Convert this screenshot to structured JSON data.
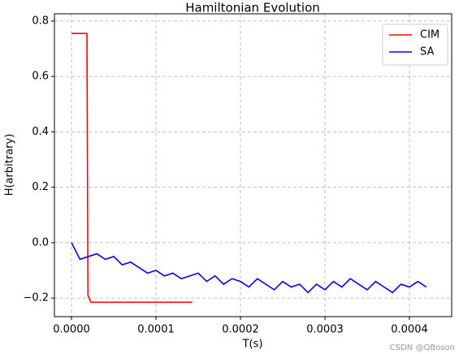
{
  "chart_data": {
    "type": "line",
    "title": "Hamiltonian Evolution",
    "xlabel": "T(s)",
    "ylabel": "H(arbitrary)",
    "watermark": "CSDN @QBoson",
    "xlim": [
      -2.02e-05,
      0.00045
    ],
    "ylim": [
      -0.267,
      0.826
    ],
    "xticks": [
      {
        "value": 0,
        "label": "0.0000"
      },
      {
        "value": 0.0001,
        "label": "0.0001"
      },
      {
        "value": 0.0002,
        "label": "0.0002"
      },
      {
        "value": 0.0003,
        "label": "0.0003"
      },
      {
        "value": 0.0004,
        "label": "0.0004"
      }
    ],
    "yticks": [
      {
        "value": -0.2,
        "label": "−0.2"
      },
      {
        "value": 0,
        "label": "0.0"
      },
      0.2,
      0.4,
      0.6,
      0.8
    ],
    "grid": true,
    "legend": "upper right",
    "series": [
      {
        "name": "CIM",
        "color": "#ff0000",
        "x": [
          0,
          1.83e-05,
          1.95e-05,
          2.3e-05,
          0.000143
        ],
        "values": [
          0.755,
          0.755,
          -0.19,
          -0.215,
          -0.215
        ]
      },
      {
        "name": "SA",
        "color": "#0000ff",
        "x": [
          0,
          1e-05,
          2e-05,
          3e-05,
          4e-05,
          5e-05,
          6e-05,
          7e-05,
          8e-05,
          9e-05,
          0.0001,
          0.00011,
          0.00012,
          0.00013,
          0.00014,
          0.00015,
          0.00016,
          0.00017,
          0.00018,
          0.00019,
          0.0002,
          0.00021,
          0.00022,
          0.00023,
          0.00024,
          0.00025,
          0.00026,
          0.00027,
          0.00028,
          0.00029,
          0.0003,
          0.00031,
          0.00032,
          0.00033,
          0.00034,
          0.00035,
          0.00036,
          0.00037,
          0.00038,
          0.00039,
          0.0004,
          0.00041,
          0.00042
        ],
        "values": [
          0.0,
          -0.06,
          -0.05,
          -0.04,
          -0.06,
          -0.05,
          -0.08,
          -0.07,
          -0.09,
          -0.11,
          -0.1,
          -0.12,
          -0.11,
          -0.13,
          -0.12,
          -0.11,
          -0.14,
          -0.12,
          -0.15,
          -0.13,
          -0.14,
          -0.16,
          -0.13,
          -0.15,
          -0.17,
          -0.14,
          -0.16,
          -0.15,
          -0.18,
          -0.15,
          -0.17,
          -0.14,
          -0.16,
          -0.13,
          -0.15,
          -0.17,
          -0.14,
          -0.16,
          -0.18,
          -0.15,
          -0.16,
          -0.14,
          -0.16
        ]
      }
    ]
  }
}
